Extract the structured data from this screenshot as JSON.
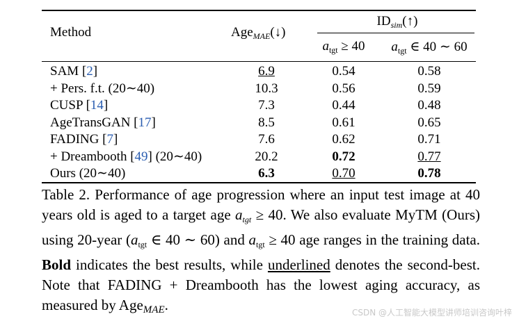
{
  "table": {
    "headers": {
      "method": "Method",
      "age": "Age",
      "age_sub": "MAE",
      "age_arrow": "(↓)",
      "id": "ID",
      "id_sub": "sim",
      "id_arrow": "(↑)",
      "sub1": "≥ 40",
      "sub2": "∈ 40 ∼ 60",
      "a": "a",
      "tgt": "tgt"
    },
    "rows": [
      {
        "method": "SAM ",
        "cite": "2",
        "suffix": "",
        "age": "6.9",
        "id1": "0.54",
        "id2": "0.58",
        "fmt": [
          "u",
          "",
          ""
        ]
      },
      {
        "method": "+ Pers. f.t. (20∼40)",
        "cite": "",
        "suffix": "",
        "age": "10.3",
        "id1": "0.56",
        "id2": "0.59",
        "fmt": [
          "",
          "",
          ""
        ]
      },
      {
        "method": "CUSP ",
        "cite": "14",
        "suffix": "",
        "age": "7.3",
        "id1": "0.44",
        "id2": "0.48",
        "fmt": [
          "",
          "",
          ""
        ]
      },
      {
        "method": "AgeTransGAN ",
        "cite": "17",
        "suffix": "",
        "age": "8.5",
        "id1": "0.61",
        "id2": "0.65",
        "fmt": [
          "",
          "",
          ""
        ]
      },
      {
        "method": "FADING ",
        "cite": "7",
        "suffix": "",
        "age": "7.6",
        "id1": "0.62",
        "id2": "0.71",
        "fmt": [
          "",
          "",
          ""
        ]
      },
      {
        "method": "+ Dreambooth ",
        "cite": "49",
        "suffix": " (20∼40)",
        "age": "20.2",
        "id1": "0.72",
        "id2": "0.77",
        "fmt": [
          "",
          "b",
          "u"
        ]
      },
      {
        "method": "Ours (20∼40)",
        "cite": "",
        "suffix": "",
        "age": "6.3",
        "id1": "0.70",
        "id2": "0.78",
        "fmt": [
          "b",
          "u",
          "b"
        ]
      }
    ]
  },
  "caption": {
    "p1": "Table 2. Performance of age progression where an input test image at 40 years old is aged to a target age ",
    "p2": " ≥ 40. We also evaluate MyTM (Ours) using 20-year (",
    "p3": " ∈ 40 ∼ 60) and ",
    "p4": " ≥ 40 age ranges in the training data. ",
    "bold": "Bold",
    "p5": " indicates the best results, while ",
    "underlined": "underlined",
    "p6": " denotes the second-best. Note that FADING + Dreambooth has the lowest aging accuracy, as measured by Age",
    "a": "a",
    "tgt_it": "tgt",
    "tgt": "tgt",
    "mae": "MAE",
    "end": "."
  },
  "watermark": "CSDN @人工智能大模型讲师培训咨询叶梓",
  "colors": {
    "citation": "#2a5db0"
  }
}
